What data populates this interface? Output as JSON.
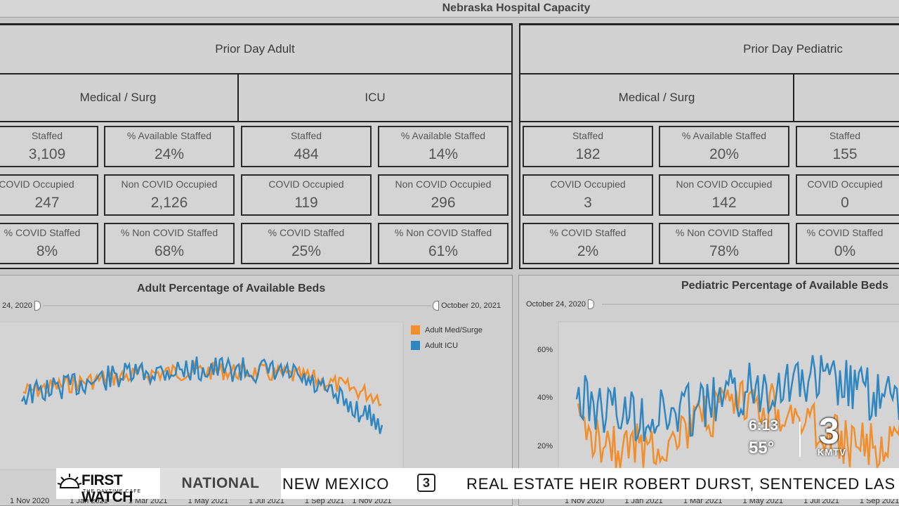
{
  "header": {
    "title": "Nebraska Hospital Capacity"
  },
  "adult": {
    "title": "Prior Day Adult",
    "med_surg": {
      "title": "Medical / Surg",
      "staffed_label": "Staffed",
      "staffed": "3,109",
      "avail_label": "% Available Staffed",
      "avail": "24%",
      "covid_occ_label": "COVID Occupied",
      "covid_occ": "247",
      "noncovid_occ_label": "Non COVID Occupied",
      "noncovid_occ": "2,126",
      "covid_staffed_label": "% COVID Staffed",
      "covid_staffed": "8%",
      "noncovid_staffed_label": "% Non COVID Staffed",
      "noncovid_staffed": "68%"
    },
    "icu": {
      "title": "ICU",
      "staffed_label": "Staffed",
      "staffed": "484",
      "avail_label": "% Available Staffed",
      "avail": "14%",
      "covid_occ_label": "COVID Occupied",
      "covid_occ": "119",
      "noncovid_occ_label": "Non COVID Occupied",
      "noncovid_occ": "296",
      "covid_staffed_label": "% COVID Staffed",
      "covid_staffed": "25%",
      "noncovid_staffed_label": "% Non COVID Staffed",
      "noncovid_staffed": "61%"
    }
  },
  "pediatric": {
    "title": "Prior Day Pediatric",
    "med_surg": {
      "title": "Medical / Surg",
      "staffed_label": "Staffed",
      "staffed": "182",
      "avail_label": "% Available Staffed",
      "avail": "20%",
      "covid_occ_label": "COVID Occupied",
      "covid_occ": "3",
      "noncovid_occ_label": "Non COVID Occupied",
      "noncovid_occ": "142",
      "covid_staffed_label": "% COVID Staffed",
      "covid_staffed": "2%",
      "noncovid_staffed_label": "% Non COVID Staffed",
      "noncovid_staffed": "78%"
    },
    "icu": {
      "staffed_label": "Staffed",
      "staffed": "155",
      "covid_occ_label": "COVID Occupied",
      "covid_occ": "0",
      "covid_staffed_label": "% COVID Staffed",
      "covid_staffed": "0%"
    }
  },
  "adult_chart": {
    "title": "Adult Percentage of Available Beds",
    "range_start": "24, 2020",
    "range_end": "October 20, 2021",
    "x_ticks": [
      "1 Nov 2020",
      "1 Jan 2021",
      "1 Mar 2021",
      "1 May 2021",
      "1 Jul 2021",
      "1 Sep 2021",
      "1 Nov 2021"
    ],
    "legend": [
      "Adult Med/Surge",
      "Adult ICU"
    ]
  },
  "ped_chart": {
    "title": "Pediatric Percentage of Available Beds",
    "range_start": "October 24, 2020",
    "y_ticks": [
      "60%",
      "40%",
      "20%"
    ],
    "x_ticks": [
      "1 Nov 2020",
      "1 Jan 2021",
      "1 Mar 2021",
      "1 May 2021",
      "1 Jul 2021",
      "1 Sep 2021"
    ]
  },
  "chart_data": [
    {
      "type": "line",
      "title": "Adult Percentage of Available Beds",
      "series": [
        {
          "name": "Adult Med/Surge",
          "color": "#f28e2b"
        },
        {
          "name": "Adult ICU",
          "color": "#2f86c1"
        }
      ]
    },
    {
      "type": "line",
      "title": "Pediatric Percentage of Available Beds",
      "y_ticks": [
        "20%",
        "40%",
        "60%"
      ]
    }
  ],
  "ticker": {
    "sponsor": "FIRST WATCH",
    "sponsor_sub": "THE DAYTIME CAFE",
    "section": "NATIONAL",
    "headline_a": "NEW MEXICO",
    "headline_b": "REAL ESTATE HEIR ROBERT DURST, SENTENCED LAS"
  },
  "weather": {
    "time": "6:13",
    "temp": "55°"
  },
  "station": {
    "number": "3",
    "call": "KMTV"
  },
  "colors": {
    "orange": "#f28e2b",
    "blue": "#2f86c1"
  }
}
